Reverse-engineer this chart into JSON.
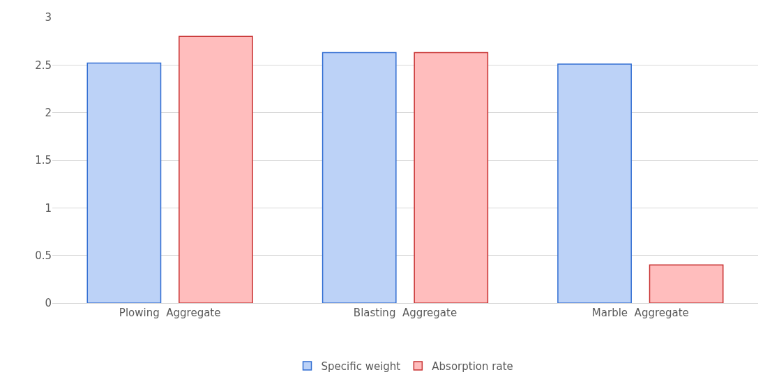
{
  "chart_data": {
    "type": "bar",
    "categories": [
      "Plowing  Aggregate",
      "Blasting  Aggregate",
      "Marble  Aggregate"
    ],
    "series": [
      {
        "name": "Specific weight",
        "color": "#bcd2f7",
        "values": [
          2.52,
          2.63,
          2.51
        ]
      },
      {
        "name": "Absorption rate",
        "color": "#ffbdbd",
        "values": [
          2.8,
          2.63,
          0.4
        ]
      }
    ],
    "ylim": [
      0,
      3
    ],
    "yticks": [
      0,
      0.5,
      1,
      1.5,
      2,
      2.5,
      3
    ],
    "grid": "y",
    "legend": "bottom"
  }
}
